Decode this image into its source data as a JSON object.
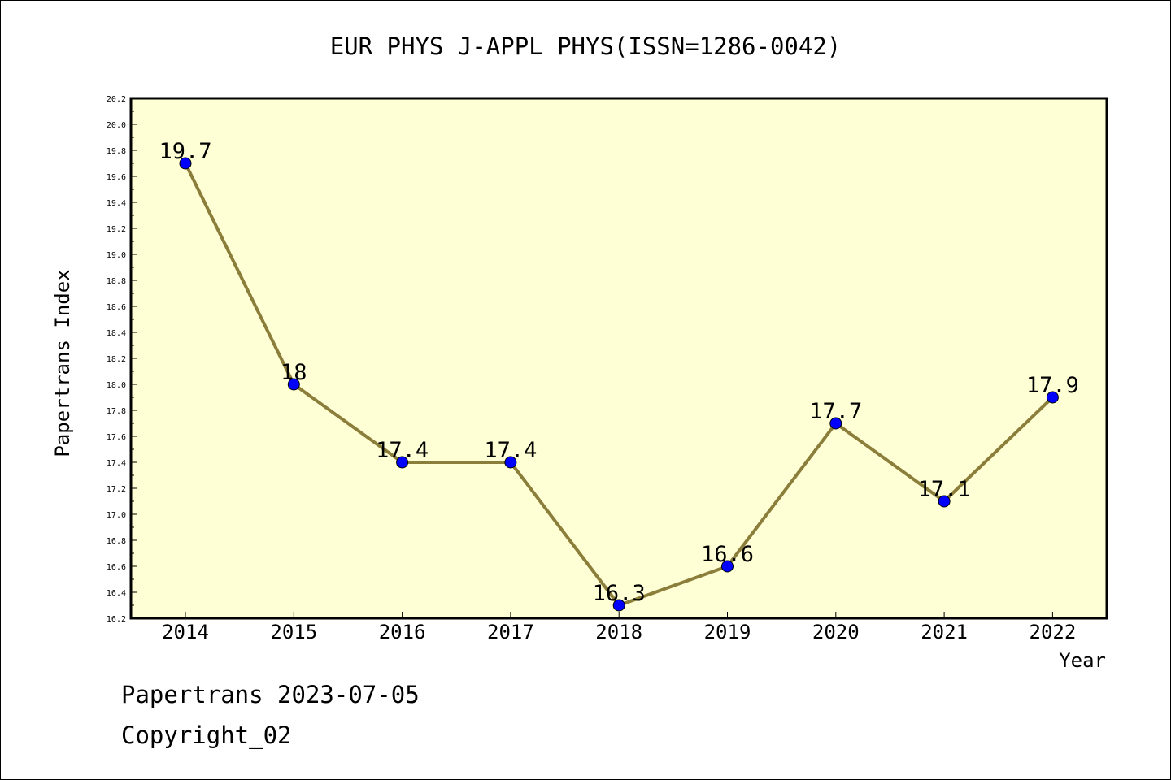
{
  "chart_data": {
    "type": "line",
    "title": "EUR PHYS J-APPL PHYS(ISSN=1286-0042)",
    "xlabel": "Year",
    "ylabel": "Papertrans Index",
    "categories": [
      "2014",
      "2015",
      "2016",
      "2017",
      "2018",
      "2019",
      "2020",
      "2021",
      "2022"
    ],
    "series": [
      {
        "values": [
          19.7,
          18,
          17.4,
          17.4,
          16.3,
          16.6,
          17.7,
          17.1,
          17.9
        ],
        "labels": [
          "19.7",
          "18",
          "17.4",
          "17.4",
          "16.3",
          "16.6",
          "17.7",
          "17.1",
          "17.9"
        ]
      }
    ],
    "ylim": [
      16.2,
      20.2
    ],
    "ytick_step": 0.2,
    "ytick_labels": [
      "16.2",
      "16.4",
      "16.6",
      "16.8",
      "17.0",
      "17.2",
      "17.4",
      "17.6",
      "17.8",
      "18.0",
      "18.2",
      "18.4",
      "18.6",
      "18.8",
      "19.0",
      "19.2",
      "19.4",
      "19.6",
      "19.8",
      "20.0",
      "20.2"
    ],
    "grid": false,
    "legend": "none",
    "colors": {
      "plot_background": "#ffffd5",
      "line": "#8b7d3a",
      "marker": "#0000ff",
      "frame": "#000000"
    }
  },
  "footer": {
    "line1": "Papertrans 2023-07-05",
    "line2": "Copyright_02"
  }
}
